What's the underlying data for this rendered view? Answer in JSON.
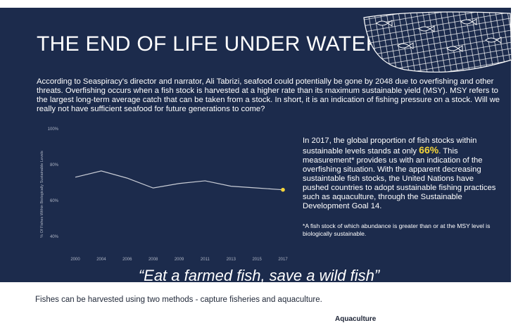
{
  "title": "THE END OF LIFE UNDER WATER",
  "intro": "According to Seaspiracy's director and narrator, Ali Tabrizi, seafood could potentially be gone by 2048 due to overfishing and other threats. Overfishing occurs when a fish stock is harvested at a higher rate than its maximum sustainable yield (MSY). MSY refers to the largest long-term average catch that can be taken from a stock. In short, it is an indication of fishing pressure on a stock. Will we really not have sufficient seafood for future generations to come?",
  "side_text": {
    "before": "In 2017, the global proportion of fish stocks within sustainable levels stands at only ",
    "highlight": "66%",
    "after": ". This measurement* provides us with an indication of the overfishing situation. With the apparent decreasing sustaintable fish stocks, the United Nations have pushed countries to adopt sustainable fishing practices such as aquaculture, through the Sustainable Development Goal 14.",
    "footnote": "*A fish stock of which abundance is greater than or at the MSY level is biologically sustainable."
  },
  "quote": "“Eat a farmed fish, save a wild fish”",
  "below_text": "Fishes can be harvested using two methods - capture fisheries and aquaculture.",
  "cut_label": "Aquaculture",
  "colors": {
    "background": "#1c2b4c",
    "line": "#c9cdd6",
    "highlight": "#f4d43a",
    "text": "#ffffff"
  },
  "decoration": "fishing-net-with-fish",
  "chart_data": {
    "type": "line",
    "ylabel": "% Of Fishes Within Biologically Sustainable Levels",
    "xlabel": "",
    "title": "",
    "ylim": [
      40,
      100
    ],
    "y_ticks": [
      40,
      60,
      80,
      100
    ],
    "y_tick_labels": [
      "40%",
      "60%",
      "80%",
      "100%"
    ],
    "x_ticks": [
      "2000",
      "2004",
      "2006",
      "2008",
      "2009",
      "2011",
      "2013",
      "2015",
      "2017"
    ],
    "x": [
      "2000",
      "2004",
      "2006",
      "2008",
      "2009",
      "2011",
      "2013",
      "2015",
      "2017"
    ],
    "values": [
      73,
      76.5,
      72.5,
      67,
      69.5,
      71,
      68,
      67,
      66
    ],
    "highlight_last": true,
    "grid": false,
    "legend": "none"
  }
}
